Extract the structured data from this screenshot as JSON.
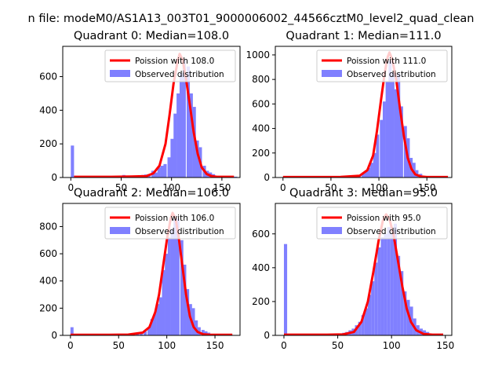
{
  "figure": {
    "suptitle": "n file: modeM0/AS1A13_003T01_9000006002_44566cztM0_level2_quad_clean"
  },
  "legend": {
    "placement": "upper right",
    "observed_label": "Observed distribution",
    "observed_color": "#8080ff",
    "poisson_color": "#ff0000"
  },
  "chart_data": [
    {
      "type": "bar",
      "title": "Quadrant 0: Median=108.0",
      "median": 108.0,
      "poisson_label": "Poission with 108.0",
      "xlim": [
        -8,
        168
      ],
      "ylim": [
        0,
        780
      ],
      "xticks": [
        0,
        50,
        100,
        150
      ],
      "yticks": [
        0,
        200,
        400,
        600
      ],
      "bin_width": 3.2,
      "bins": [
        [
          0,
          190
        ],
        [
          3.2,
          10
        ],
        [
          48,
          8
        ],
        [
          51,
          15
        ],
        [
          54,
          12
        ],
        [
          57,
          10
        ],
        [
          60,
          8
        ],
        [
          64,
          8
        ],
        [
          70,
          15
        ],
        [
          73,
          18
        ],
        [
          76,
          20
        ],
        [
          80,
          40
        ],
        [
          83,
          30
        ],
        [
          86,
          60
        ],
        [
          89,
          70
        ],
        [
          92,
          80
        ],
        [
          96,
          120
        ],
        [
          99,
          230
        ],
        [
          102,
          380
        ],
        [
          105,
          500
        ],
        [
          108,
          620
        ],
        [
          111,
          700
        ],
        [
          115,
          660
        ],
        [
          118,
          500
        ],
        [
          121,
          420
        ],
        [
          124,
          220
        ],
        [
          127,
          180
        ],
        [
          131,
          70
        ],
        [
          134,
          40
        ],
        [
          137,
          30
        ],
        [
          140,
          20
        ],
        [
          144,
          10
        ],
        [
          150,
          8
        ],
        [
          156,
          5
        ],
        [
          162,
          5
        ]
      ],
      "poisson_curve": [
        [
          3.2,
          4
        ],
        [
          20,
          4
        ],
        [
          40,
          4
        ],
        [
          60,
          6
        ],
        [
          75,
          8
        ],
        [
          82,
          25
        ],
        [
          88,
          70
        ],
        [
          94,
          200
        ],
        [
          98,
          370
        ],
        [
          102,
          560
        ],
        [
          106,
          690
        ],
        [
          108,
          735
        ],
        [
          111,
          700
        ],
        [
          114,
          600
        ],
        [
          118,
          440
        ],
        [
          122,
          270
        ],
        [
          126,
          140
        ],
        [
          130,
          60
        ],
        [
          135,
          20
        ],
        [
          140,
          8
        ],
        [
          145,
          4
        ],
        [
          162,
          4
        ]
      ]
    },
    {
      "type": "bar",
      "title": "Quadrant 1: Median=111.0",
      "median": 111.0,
      "poisson_label": "Poission with 111.0",
      "xlim": [
        -8,
        176
      ],
      "ylim": [
        0,
        1070
      ],
      "xticks": [
        0,
        50,
        100,
        150
      ],
      "yticks": [
        0,
        200,
        400,
        600,
        800,
        1000
      ],
      "bin_width": 3.2,
      "bins": [
        [
          78,
          20
        ],
        [
          82,
          40
        ],
        [
          85,
          50
        ],
        [
          88,
          80
        ],
        [
          91,
          120
        ],
        [
          94,
          200
        ],
        [
          97,
          350
        ],
        [
          101,
          470
        ],
        [
          104,
          620
        ],
        [
          107,
          780
        ],
        [
          110,
          950
        ],
        [
          113,
          860
        ],
        [
          116,
          720
        ],
        [
          119,
          850
        ],
        [
          122,
          580
        ],
        [
          126,
          420
        ],
        [
          129,
          320
        ],
        [
          132,
          160
        ],
        [
          135,
          120
        ],
        [
          138,
          60
        ],
        [
          142,
          30
        ]
      ],
      "poisson_curve": [
        [
          0,
          4
        ],
        [
          40,
          4
        ],
        [
          60,
          5
        ],
        [
          80,
          15
        ],
        [
          88,
          60
        ],
        [
          94,
          180
        ],
        [
          98,
          380
        ],
        [
          102,
          620
        ],
        [
          106,
          850
        ],
        [
          109,
          980
        ],
        [
          111,
          1020
        ],
        [
          114,
          960
        ],
        [
          118,
          800
        ],
        [
          122,
          560
        ],
        [
          126,
          340
        ],
        [
          130,
          160
        ],
        [
          134,
          70
        ],
        [
          138,
          25
        ],
        [
          144,
          8
        ],
        [
          150,
          4
        ],
        [
          172,
          4
        ]
      ]
    },
    {
      "type": "bar",
      "title": "Quadrant 2: Median=106.0",
      "median": 106.0,
      "poisson_label": "Poission with 106.0",
      "xlim": [
        -8,
        176
      ],
      "ylim": [
        0,
        970
      ],
      "xticks": [
        0,
        50,
        100,
        150
      ],
      "yticks": [
        0,
        200,
        400,
        600,
        800
      ],
      "bin_width": 3.2,
      "bins": [
        [
          0,
          60
        ],
        [
          68,
          15
        ],
        [
          72,
          20
        ],
        [
          76,
          30
        ],
        [
          80,
          60
        ],
        [
          83,
          120
        ],
        [
          86,
          160
        ],
        [
          89,
          230
        ],
        [
          92,
          280
        ],
        [
          95,
          480
        ],
        [
          98,
          600
        ],
        [
          101,
          720
        ],
        [
          104,
          780
        ],
        [
          107,
          880
        ],
        [
          110,
          860
        ],
        [
          114,
          700
        ],
        [
          117,
          520
        ],
        [
          120,
          340
        ],
        [
          123,
          230
        ],
        [
          126,
          200
        ],
        [
          129,
          110
        ],
        [
          132,
          60
        ],
        [
          136,
          40
        ],
        [
          139,
          30
        ],
        [
          142,
          20
        ],
        [
          146,
          10
        ]
      ],
      "poisson_curve": [
        [
          0,
          4
        ],
        [
          40,
          4
        ],
        [
          60,
          6
        ],
        [
          75,
          20
        ],
        [
          82,
          60
        ],
        [
          88,
          170
        ],
        [
          92,
          300
        ],
        [
          96,
          500
        ],
        [
          100,
          700
        ],
        [
          104,
          860
        ],
        [
          106,
          900
        ],
        [
          109,
          860
        ],
        [
          112,
          740
        ],
        [
          116,
          520
        ],
        [
          120,
          300
        ],
        [
          124,
          140
        ],
        [
          128,
          60
        ],
        [
          132,
          25
        ],
        [
          138,
          8
        ],
        [
          145,
          4
        ],
        [
          168,
          4
        ]
      ]
    },
    {
      "type": "bar",
      "title": "Quadrant 3: Median=95.0",
      "median": 95.0,
      "poisson_label": "Poission with 95.0",
      "xlim": [
        -8,
        156
      ],
      "ylim": [
        0,
        780
      ],
      "xticks": [
        0,
        50,
        100,
        150
      ],
      "yticks": [
        0,
        200,
        400,
        600
      ],
      "bin_width": 3.0,
      "bins": [
        [
          0,
          540
        ],
        [
          48,
          10
        ],
        [
          54,
          15
        ],
        [
          57,
          20
        ],
        [
          60,
          30
        ],
        [
          63,
          40
        ],
        [
          66,
          60
        ],
        [
          69,
          80
        ],
        [
          72,
          120
        ],
        [
          75,
          160
        ],
        [
          78,
          240
        ],
        [
          81,
          320
        ],
        [
          84,
          430
        ],
        [
          87,
          520
        ],
        [
          90,
          580
        ],
        [
          93,
          600
        ],
        [
          96,
          640
        ],
        [
          99,
          600
        ],
        [
          102,
          660
        ],
        [
          105,
          470
        ],
        [
          108,
          380
        ],
        [
          111,
          260
        ],
        [
          114,
          210
        ],
        [
          117,
          170
        ],
        [
          120,
          100
        ],
        [
          123,
          60
        ],
        [
          126,
          40
        ],
        [
          129,
          30
        ],
        [
          132,
          20
        ],
        [
          135,
          10
        ]
      ],
      "poisson_curve": [
        [
          0,
          4
        ],
        [
          40,
          4
        ],
        [
          55,
          6
        ],
        [
          65,
          20
        ],
        [
          72,
          80
        ],
        [
          78,
          200
        ],
        [
          83,
          370
        ],
        [
          88,
          560
        ],
        [
          92,
          680
        ],
        [
          95,
          715
        ],
        [
          98,
          690
        ],
        [
          102,
          590
        ],
        [
          106,
          440
        ],
        [
          110,
          290
        ],
        [
          114,
          160
        ],
        [
          118,
          80
        ],
        [
          123,
          30
        ],
        [
          130,
          8
        ],
        [
          138,
          4
        ],
        [
          148,
          4
        ]
      ]
    }
  ]
}
